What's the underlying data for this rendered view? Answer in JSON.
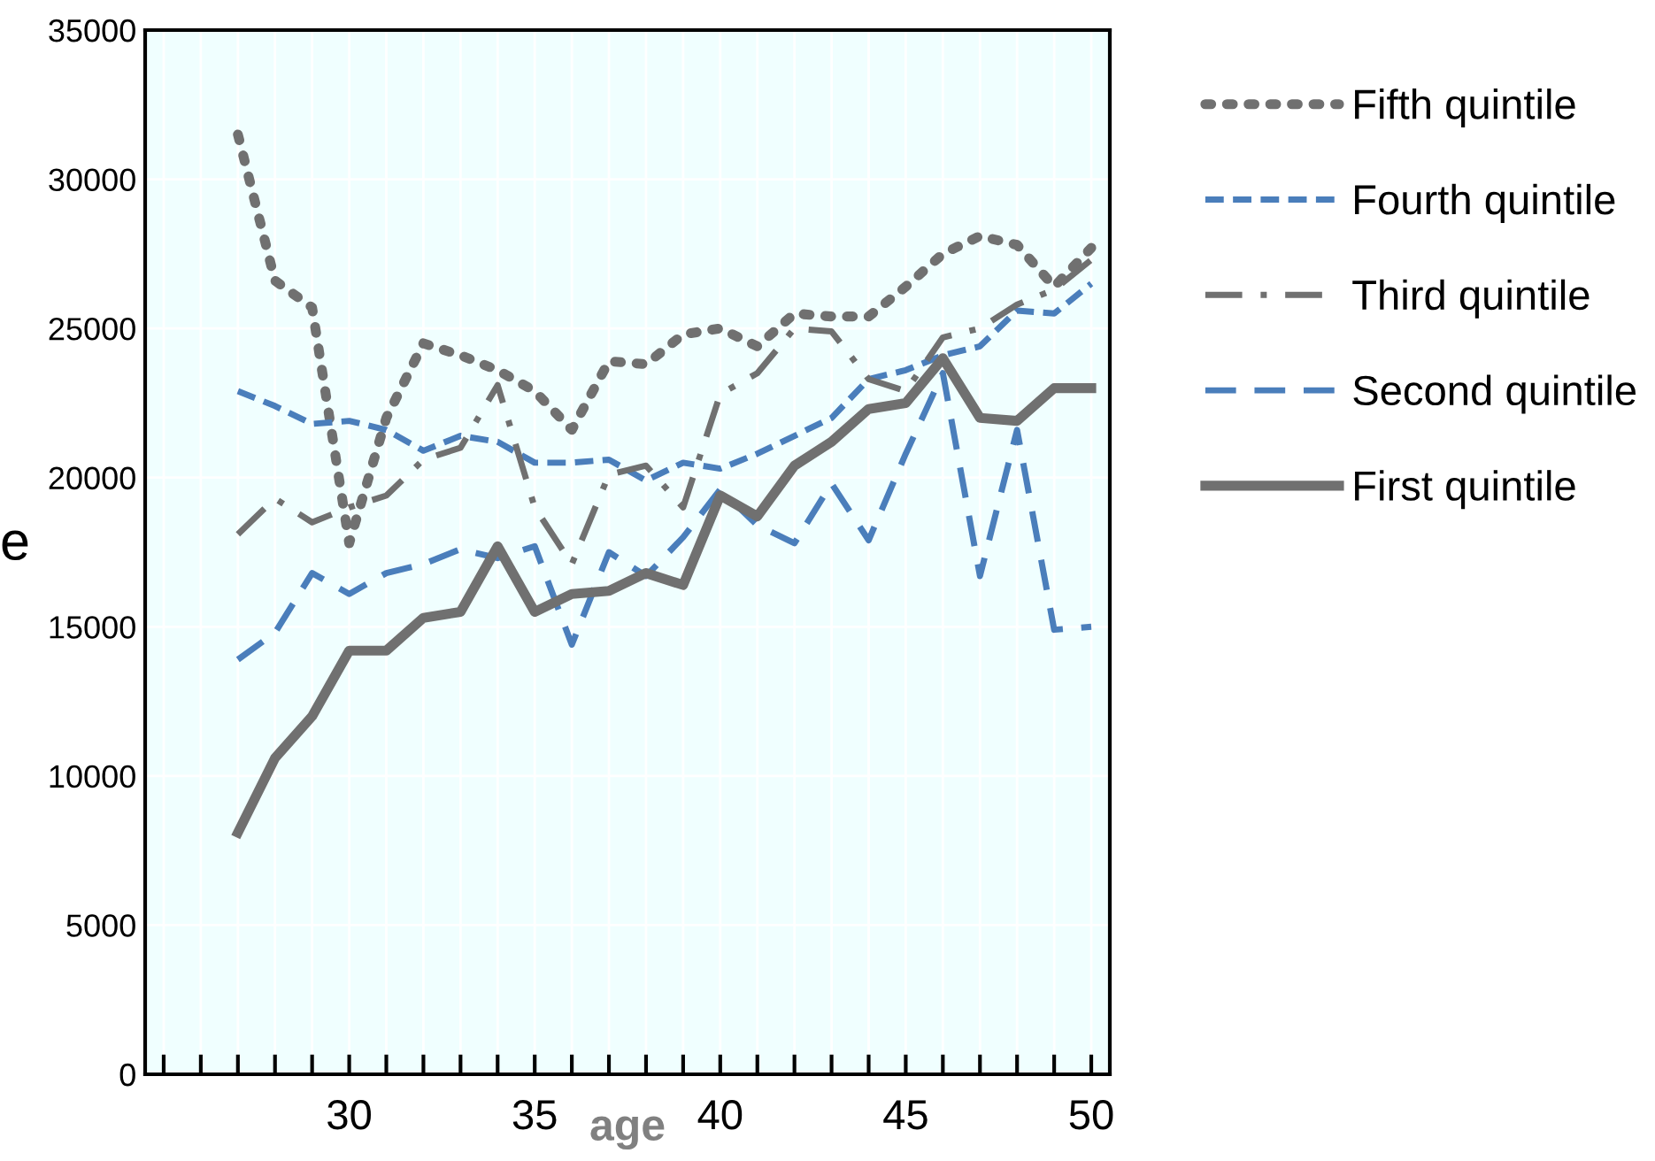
{
  "chart_data": {
    "type": "line",
    "xlabel": "age",
    "ylabel": "e",
    "x": [
      27,
      28,
      29,
      30,
      31,
      32,
      33,
      34,
      35,
      36,
      37,
      38,
      39,
      40,
      41,
      42,
      43,
      44,
      45,
      46,
      47,
      48,
      49,
      50
    ],
    "series": [
      {
        "name": "Fifth quintile",
        "color": "#707070",
        "line_style": "dotted",
        "values": [
          31500,
          26600,
          25700,
          17800,
          22000,
          24500,
          24100,
          23600,
          22900,
          21600,
          23900,
          23800,
          24800,
          25000,
          24400,
          25500,
          25400,
          25400,
          26400,
          27500,
          28100,
          27800,
          26400,
          27700
        ]
      },
      {
        "name": "Fourth quintile",
        "color": "#4a7ebb",
        "line_style": "dashed",
        "values": [
          22900,
          22400,
          21800,
          21900,
          21600,
          20900,
          21400,
          21200,
          20500,
          20500,
          20600,
          19900,
          20500,
          20300,
          20800,
          21400,
          22000,
          23300,
          23600,
          24100,
          24400,
          25600,
          25500,
          26500
        ]
      },
      {
        "name": "Third quintile",
        "color": "#707070",
        "line_style": "dashdot",
        "values": [
          18100,
          19300,
          18500,
          19000,
          19400,
          20600,
          21000,
          23100,
          19000,
          17100,
          20100,
          20400,
          19000,
          22800,
          23500,
          25000,
          24900,
          23300,
          22900,
          24700,
          25000,
          25800,
          26300,
          27300
        ]
      },
      {
        "name": "Second quintile",
        "color": "#4a7ebb",
        "line_style": "longdash",
        "values": [
          13900,
          14800,
          16800,
          16100,
          16800,
          17100,
          17600,
          17300,
          17700,
          14400,
          17500,
          16700,
          18000,
          19600,
          18400,
          17800,
          19800,
          17900,
          20800,
          23500,
          16700,
          21600,
          14900,
          15000
        ]
      },
      {
        "name": "First quintile",
        "color": "#707070",
        "line_style": "solid",
        "values": [
          8100,
          10600,
          12000,
          14200,
          14200,
          15300,
          15500,
          17700,
          15500,
          16100,
          16200,
          16800,
          16400,
          19400,
          18700,
          20400,
          21200,
          22300,
          22500,
          24000,
          22000,
          21900,
          23000,
          23000
        ]
      }
    ],
    "xlim": [
      24.5,
      50.5
    ],
    "xticks": [
      {
        "value": 25,
        "label": null
      },
      {
        "value": 26,
        "label": null
      },
      {
        "value": 27,
        "label": null
      },
      {
        "value": 28,
        "label": null
      },
      {
        "value": 29,
        "label": null
      },
      30,
      {
        "value": 31,
        "label": null
      },
      {
        "value": 32,
        "label": null
      },
      {
        "value": 33,
        "label": null
      },
      {
        "value": 34,
        "label": null
      },
      35,
      {
        "value": 36,
        "label": null
      },
      {
        "value": 37,
        "label": null
      },
      {
        "value": 38,
        "label": null
      },
      {
        "value": 39,
        "label": null
      },
      40,
      {
        "value": 41,
        "label": null
      },
      {
        "value": 42,
        "label": null
      },
      {
        "value": 43,
        "label": null
      },
      {
        "value": 44,
        "label": null
      },
      45,
      {
        "value": 46,
        "label": null
      },
      {
        "value": 47,
        "label": null
      },
      {
        "value": 48,
        "label": null
      },
      {
        "value": 49,
        "label": null
      },
      50
    ],
    "ylim": [
      0,
      35000
    ],
    "yticks": [
      0,
      5000,
      10000,
      15000,
      20000,
      25000,
      30000,
      35000
    ],
    "grid": true,
    "legend": "right"
  }
}
